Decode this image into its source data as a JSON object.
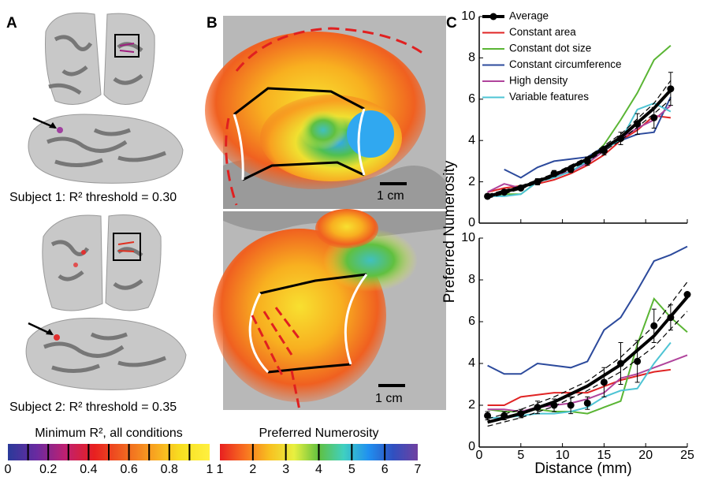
{
  "panel_labels": [
    "A",
    "B",
    "C"
  ],
  "panel_a": {
    "subject_1": "Subject 1: R² threshold = 0.30",
    "subject_2": "Subject 2: R² threshold = 0.35"
  },
  "panel_b": {
    "scale_bar_top": "1 cm",
    "scale_bar_bottom": "1 cm"
  },
  "colorbars": [
    {
      "title": "Minimum R², all conditions",
      "lim": [
        0,
        1
      ],
      "ticks": [
        0,
        0.2,
        0.4,
        0.6,
        0.8,
        1
      ],
      "colors": [
        "#2a3a9a",
        "#6a2aa0",
        "#c02070",
        "#e82020",
        "#f06020",
        "#f8a020",
        "#f8e020",
        "#fff040"
      ]
    },
    {
      "title": "Preferred Numerosity",
      "lim": [
        1,
        7
      ],
      "ticks": [
        1,
        2,
        3,
        4,
        5,
        6,
        7
      ],
      "colors": [
        "#e82020",
        "#f87020",
        "#f8c020",
        "#e8f040",
        "#60c040",
        "#40d0c0",
        "#2090f0",
        "#3050c0",
        "#7040a0"
      ]
    }
  ],
  "chart_data": [
    {
      "type": "line",
      "ylabel": "Preferred Numerosity",
      "xlim": [
        0,
        25
      ],
      "ylim": [
        0,
        10
      ],
      "yticks": [
        0,
        2,
        4,
        6,
        8,
        10
      ],
      "legend": "upper left",
      "x": [
        1,
        3,
        5,
        7,
        9,
        11,
        13,
        15,
        17,
        19,
        21,
        23
      ],
      "series": [
        {
          "name": "Average",
          "color": "#000000",
          "marker": "o",
          "values": [
            1.3,
            1.5,
            1.7,
            2.0,
            2.4,
            2.6,
            3.0,
            3.5,
            4.1,
            4.8,
            5.1,
            6.5
          ],
          "errors": [
            0.1,
            0.1,
            0.1,
            0.15,
            0.15,
            0.15,
            0.2,
            0.2,
            0.3,
            0.5,
            0.5,
            0.8
          ]
        },
        {
          "name": "Constant area",
          "color": "#e02424",
          "values": [
            1.5,
            1.7,
            1.8,
            1.9,
            2.1,
            2.4,
            2.8,
            3.3,
            4.0,
            4.5,
            5.2,
            5.1
          ]
        },
        {
          "name": "Constant dot size",
          "color": "#5ab534",
          "values": [
            1.3,
            1.4,
            1.4,
            2.0,
            2.3,
            2.7,
            3.0,
            3.8,
            5.0,
            6.3,
            7.9,
            8.6
          ]
        },
        {
          "name": "Constant circumference",
          "color": "#2c4a9c",
          "values": [
            null,
            2.6,
            2.2,
            2.7,
            3.0,
            3.1,
            3.2,
            3.7,
            4.0,
            4.3,
            4.4,
            6.1
          ]
        },
        {
          "name": "High density",
          "color": "#b0449c",
          "values": [
            1.5,
            1.9,
            1.7,
            2.0,
            2.3,
            2.5,
            2.9,
            3.5,
            4.1,
            4.6,
            5.0,
            5.7
          ]
        },
        {
          "name": "Variable features",
          "color": "#4ec4d4",
          "values": [
            1.3,
            1.3,
            1.4,
            2.0,
            2.2,
            2.5,
            3.0,
            3.6,
            4.0,
            5.5,
            5.8,
            5.4
          ]
        }
      ],
      "fit": {
        "x": [
          1,
          5,
          9,
          13,
          17,
          21,
          23
        ],
        "values": [
          1.29,
          1.73,
          2.32,
          3.1,
          4.15,
          5.56,
          6.44
        ],
        "ci_low": [
          1.2,
          1.65,
          2.25,
          3.0,
          4.0,
          5.3,
          6.0
        ],
        "ci_high": [
          1.38,
          1.8,
          2.4,
          3.2,
          4.3,
          5.8,
          6.9
        ]
      }
    },
    {
      "type": "line",
      "xlabel": "Distance (mm)",
      "xlim": [
        0,
        25
      ],
      "ylim": [
        0,
        10
      ],
      "xticks": [
        0,
        5,
        10,
        15,
        20,
        25
      ],
      "yticks": [
        0,
        2,
        4,
        6,
        8,
        10
      ],
      "x": [
        1,
        3,
        5,
        7,
        9,
        11,
        13,
        15,
        17,
        19,
        21,
        23,
        25
      ],
      "series": [
        {
          "color": "#000000",
          "marker": "o",
          "values": [
            1.5,
            1.5,
            1.6,
            1.9,
            2.0,
            2.0,
            2.1,
            3.1,
            4.0,
            4.1,
            5.8,
            6.2,
            7.3
          ],
          "errors": [
            0.2,
            0.2,
            0.2,
            0.3,
            0.3,
            0.4,
            0.3,
            0.7,
            1.0,
            1.0,
            0.8,
            0.6,
            0.0
          ]
        },
        {
          "color": "#e02424",
          "values": [
            2.0,
            2.0,
            2.4,
            2.5,
            2.6,
            2.6,
            2.6,
            2.9,
            3.2,
            3.4,
            3.6,
            3.7,
            null
          ]
        },
        {
          "color": "#5ab534",
          "values": [
            1.8,
            1.7,
            1.7,
            1.8,
            1.7,
            1.7,
            1.6,
            1.9,
            2.2,
            4.9,
            7.1,
            6.2,
            5.5
          ]
        },
        {
          "color": "#2c4a9c",
          "values": [
            3.9,
            3.5,
            3.5,
            4.0,
            3.9,
            3.8,
            4.1,
            5.6,
            6.2,
            7.5,
            8.9,
            9.2,
            9.6
          ]
        },
        {
          "color": "#b0449c",
          "values": [
            1.8,
            1.8,
            1.7,
            1.9,
            2.0,
            2.1,
            2.3,
            2.6,
            3.3,
            3.5,
            3.8,
            4.1,
            4.4
          ]
        },
        {
          "color": "#4ec4d4",
          "values": [
            1.4,
            1.4,
            1.5,
            1.6,
            1.6,
            1.7,
            1.9,
            2.4,
            2.7,
            2.8,
            4.0,
            5.0,
            null
          ]
        }
      ],
      "fit": {
        "x": [
          1,
          5,
          9,
          13,
          17,
          21,
          25
        ],
        "values": [
          1.19,
          1.6,
          2.16,
          2.92,
          3.94,
          5.32,
          7.18
        ],
        "ci_low": [
          1.0,
          1.4,
          1.95,
          2.7,
          3.6,
          4.8,
          6.5
        ],
        "ci_high": [
          1.35,
          1.8,
          2.4,
          3.15,
          4.3,
          5.8,
          7.9
        ]
      }
    }
  ]
}
